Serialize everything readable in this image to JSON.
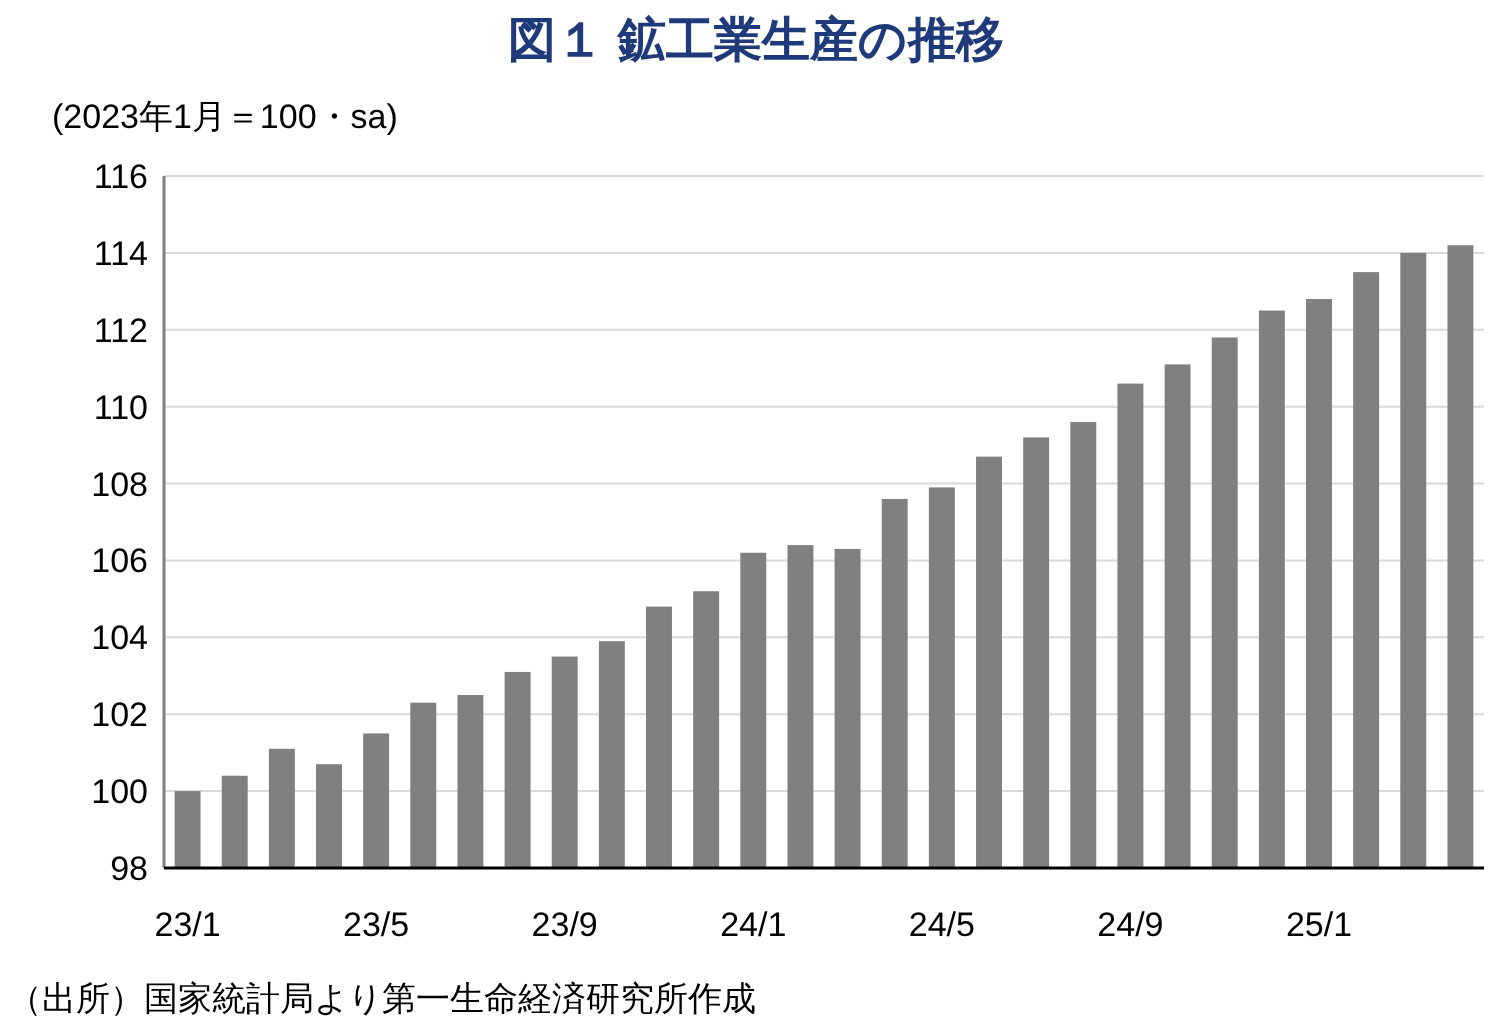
{
  "chart_data": {
    "type": "bar",
    "title": "図１ 鉱工業生産の推移",
    "ylabel": "(2023年1月＝100・sa)",
    "categories": [
      "23/1",
      null,
      null,
      null,
      "23/5",
      null,
      null,
      null,
      "23/9",
      null,
      null,
      null,
      "24/1",
      null,
      null,
      null,
      "24/5",
      null,
      null,
      null,
      "24/9",
      null,
      null,
      null,
      "25/1",
      null,
      null,
      null
    ],
    "values": [
      100.0,
      100.4,
      101.1,
      100.7,
      101.5,
      102.3,
      102.5,
      103.1,
      103.5,
      103.9,
      104.8,
      105.2,
      106.2,
      106.4,
      106.3,
      107.6,
      107.9,
      108.7,
      109.2,
      109.6,
      110.6,
      111.1,
      111.8,
      112.5,
      112.8,
      113.5,
      114.0,
      114.2
    ],
    "color": "#808080",
    "ylim": [
      98,
      116
    ],
    "yticks": [
      98,
      100,
      102,
      104,
      106,
      108,
      110,
      112,
      114,
      116
    ],
    "grid": "y",
    "annotations": [
      "（出所）国家統計局より第一生命経済研究所作成"
    ]
  }
}
